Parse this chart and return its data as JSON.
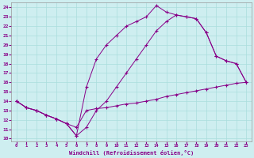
{
  "xlabel": "Windchill (Refroidissement éolien,°C)",
  "background_color": "#ceeef0",
  "line_color": "#880088",
  "grid_color": "#aadddd",
  "xlim_min": -0.5,
  "xlim_max": 23.5,
  "ylim_min": 9.7,
  "ylim_max": 24.5,
  "xticks": [
    0,
    1,
    2,
    3,
    4,
    5,
    6,
    7,
    8,
    9,
    10,
    11,
    12,
    13,
    14,
    15,
    16,
    17,
    18,
    19,
    20,
    21,
    22,
    23
  ],
  "yticks": [
    10,
    11,
    12,
    13,
    14,
    15,
    16,
    17,
    18,
    19,
    20,
    21,
    22,
    23,
    24
  ],
  "line1_x": [
    0,
    1,
    2,
    3,
    4,
    5,
    6,
    7,
    8,
    9,
    10,
    11,
    12,
    13,
    14,
    15,
    16,
    17,
    18,
    19,
    20,
    21,
    22,
    23
  ],
  "line1_y": [
    14.0,
    13.3,
    13.0,
    12.5,
    12.1,
    11.6,
    11.2,
    13.0,
    13.2,
    13.3,
    13.5,
    13.7,
    13.8,
    14.0,
    14.2,
    14.5,
    14.7,
    14.9,
    15.1,
    15.3,
    15.5,
    15.7,
    15.9,
    16.0
  ],
  "line2_x": [
    0,
    1,
    2,
    3,
    4,
    5,
    6,
    7,
    8,
    9,
    10,
    11,
    12,
    13,
    14,
    15,
    16,
    17,
    18,
    19,
    20,
    21,
    22,
    23
  ],
  "line2_y": [
    14.0,
    13.3,
    13.0,
    12.5,
    12.1,
    11.6,
    10.3,
    11.2,
    13.0,
    14.0,
    15.5,
    17.0,
    18.5,
    20.0,
    21.5,
    22.5,
    23.2,
    23.0,
    22.8,
    21.3,
    18.8,
    18.3,
    18.0,
    16.0
  ],
  "line3_x": [
    0,
    1,
    2,
    3,
    4,
    5,
    6,
    7,
    8,
    9,
    10,
    11,
    12,
    13,
    14,
    15,
    16,
    17,
    18,
    19,
    20,
    21,
    22,
    23
  ],
  "line3_y": [
    14.0,
    13.3,
    13.0,
    12.5,
    12.1,
    11.6,
    10.3,
    15.5,
    18.5,
    20.0,
    21.0,
    22.0,
    22.5,
    23.0,
    24.2,
    23.5,
    23.2,
    23.0,
    22.8,
    21.3,
    18.8,
    18.3,
    18.0,
    16.0
  ]
}
